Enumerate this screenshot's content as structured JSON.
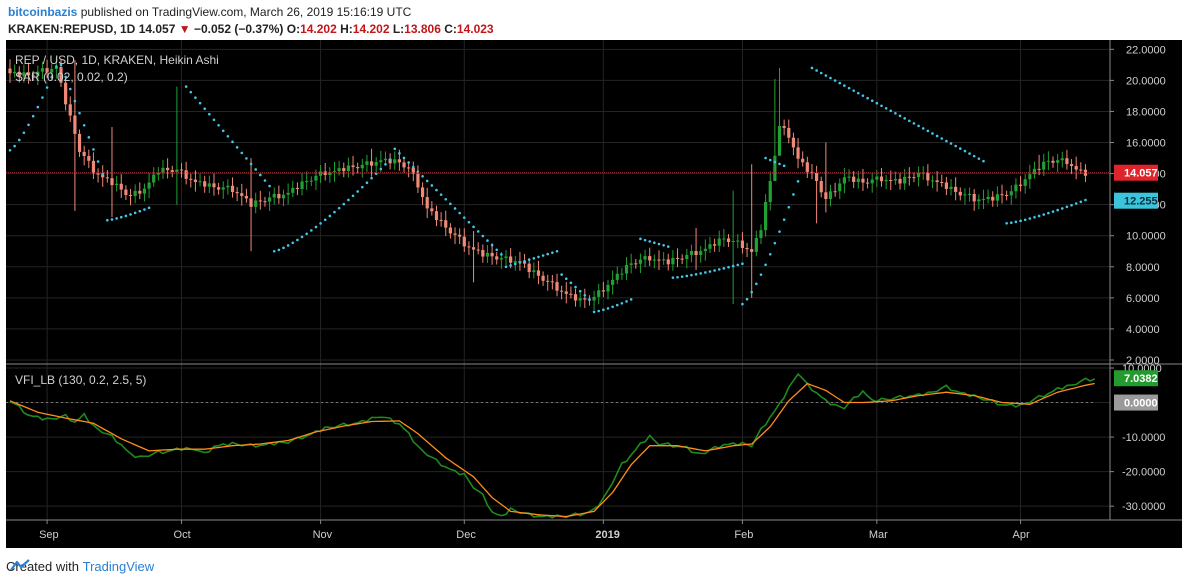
{
  "header": {
    "author": "bitcoinbazis",
    "published_text": "published on TradingView.com, March 26, 2019 15:16:19 UTC",
    "symbol": "KRAKEN:REPUSD, 1D",
    "last": "14.057",
    "change": "−0.052 (−0.37%)",
    "o_label": "O:",
    "o_value": "14.202",
    "h_label": "H:",
    "h_value": "14.202",
    "l_label": "L:",
    "l_value": "13.806",
    "c_label": "C:",
    "c_value": "14.023"
  },
  "footer": {
    "created_with": "Created with",
    "brand": "TradingView"
  },
  "colors": {
    "up": "#22a033",
    "down": "#f08a78",
    "sar": "#40c8e8",
    "vfi": "#1e8a1e",
    "signal": "#ff8c1a",
    "bg": "#000000",
    "grid": "#242424"
  },
  "chart_data": [
    {
      "type": "candlestick",
      "title": "REP / USD, 1D, KRAKEN, Heikin Ashi",
      "indicator_label": "SAR (0.02, 0.02, 0.2)",
      "ylim": [
        2,
        22.6
      ],
      "y_ticks": [
        "22.0000",
        "20.0000",
        "18.0000",
        "16.0000",
        "14.0000",
        "12.0000",
        "10.0000",
        "8.0000",
        "6.0000",
        "4.0000",
        "2.0000"
      ],
      "x_labels": [
        "Sep",
        "Oct",
        "Nov",
        "Dec",
        "2019",
        "Feb",
        "Mar",
        "Apr"
      ],
      "price_badge": "14.057",
      "sar_badge": "12.255",
      "last_price": 14.057,
      "anchors": [
        [
          0,
          20.5
        ],
        [
          4,
          20.3
        ],
        [
          7,
          20.6
        ],
        [
          10,
          20.9
        ],
        [
          12,
          18.6
        ],
        [
          15,
          15.5
        ],
        [
          18,
          14.2
        ],
        [
          22,
          13.4
        ],
        [
          26,
          12.5
        ],
        [
          29,
          13.1
        ],
        [
          32,
          14.2
        ],
        [
          36,
          14.2
        ],
        [
          40,
          13.5
        ],
        [
          44,
          13.1
        ],
        [
          48,
          13.0
        ],
        [
          50,
          12.6
        ],
        [
          52,
          12.0
        ],
        [
          56,
          12.4
        ],
        [
          60,
          12.8
        ],
        [
          64,
          13.5
        ],
        [
          68,
          14.1
        ],
        [
          72,
          14.3
        ],
        [
          76,
          14.5
        ],
        [
          80,
          14.9
        ],
        [
          84,
          14.7
        ],
        [
          86,
          14.3
        ],
        [
          88,
          13.3
        ],
        [
          90,
          11.8
        ],
        [
          94,
          10.5
        ],
        [
          98,
          9.5
        ],
        [
          102,
          8.8
        ],
        [
          106,
          8.5
        ],
        [
          110,
          8.4
        ],
        [
          112,
          7.8
        ],
        [
          116,
          7.0
        ],
        [
          120,
          6.3
        ],
        [
          123,
          5.8
        ],
        [
          126,
          6.0
        ],
        [
          130,
          7.2
        ],
        [
          134,
          8.2
        ],
        [
          138,
          8.6
        ],
        [
          142,
          8.3
        ],
        [
          146,
          8.7
        ],
        [
          150,
          9.2
        ],
        [
          154,
          9.8
        ],
        [
          158,
          9.4
        ],
        [
          160,
          9.0
        ],
        [
          162,
          10.5
        ],
        [
          164,
          13.5
        ],
        [
          166,
          17.0
        ],
        [
          168,
          16.5
        ],
        [
          170,
          15.0
        ],
        [
          174,
          13.5
        ],
        [
          176,
          12.3
        ],
        [
          180,
          13.8
        ],
        [
          184,
          13.4
        ],
        [
          188,
          13.7
        ],
        [
          192,
          13.5
        ],
        [
          196,
          14.0
        ],
        [
          200,
          13.5
        ],
        [
          204,
          12.8
        ],
        [
          208,
          12.4
        ],
        [
          212,
          12.4
        ],
        [
          216,
          12.8
        ],
        [
          220,
          14.0
        ],
        [
          224,
          14.8
        ],
        [
          228,
          14.8
        ],
        [
          230,
          14.3
        ],
        [
          232,
          14.0
        ]
      ],
      "wicks": [
        [
          14,
          21.3,
          11.6
        ],
        [
          22,
          17.0,
          11.2
        ],
        [
          36,
          19.6,
          12.0
        ],
        [
          52,
          15.0,
          9.0
        ],
        [
          78,
          15.6,
          13.8
        ],
        [
          100,
          10.3,
          7.0
        ],
        [
          148,
          10.5,
          7.8
        ],
        [
          156,
          12.9,
          5.6
        ],
        [
          160,
          14.6,
          6.0
        ],
        [
          165,
          20.1,
          14.0
        ],
        [
          166,
          20.8,
          16.4
        ],
        [
          174,
          14.5,
          10.8
        ],
        [
          176,
          16.0,
          11.5
        ],
        [
          208,
          13.0,
          11.6
        ],
        [
          222,
          15.2,
          13.9
        ]
      ],
      "sar_segments": [
        [
          0,
          10,
          15.5,
          20.9,
          "below"
        ],
        [
          11,
          20,
          21.0,
          14.0,
          "above"
        ],
        [
          21,
          30,
          11.0,
          11.8,
          "below"
        ],
        [
          38,
          56,
          19.6,
          13.2,
          "above"
        ],
        [
          57,
          82,
          9.0,
          14.9,
          "below"
        ],
        [
          83,
          106,
          15.6,
          8.8,
          "above"
        ],
        [
          107,
          118,
          8.0,
          9.0,
          "above"
        ],
        [
          119,
          125,
          7.5,
          5.9,
          "above"
        ],
        [
          126,
          134,
          5.1,
          5.9,
          "below"
        ],
        [
          136,
          142,
          9.8,
          9.3,
          "above"
        ],
        [
          143,
          158,
          7.3,
          8.2,
          "below"
        ],
        [
          163,
          167,
          15.0,
          14.5,
          "above"
        ],
        [
          158,
          170,
          5.6,
          13.5,
          "below"
        ],
        [
          173,
          210,
          20.8,
          14.8,
          "above"
        ],
        [
          215,
          232,
          10.8,
          12.3,
          "below"
        ]
      ]
    },
    {
      "type": "line",
      "title": "VFI_LB (130, 0.2, 2.5, 5)",
      "ylim": [
        -34,
        10
      ],
      "y_ticks": [
        "10.0000",
        "-10.0000",
        "-20.0000",
        "-30.0000"
      ],
      "vfi_badge": "7.0382",
      "zero_badge": "0.0000",
      "series": [
        {
          "name": "VFI",
          "anchors": [
            [
              0,
              0.5
            ],
            [
              4,
              -3.5
            ],
            [
              8,
              -5.0
            ],
            [
              12,
              -4.0
            ],
            [
              14,
              -5.5
            ],
            [
              16,
              -3.5
            ],
            [
              18,
              -7.0
            ],
            [
              22,
              -10.0
            ],
            [
              24,
              -12.0
            ],
            [
              26,
              -15.0
            ],
            [
              28,
              -16.0
            ],
            [
              32,
              -14.5
            ],
            [
              36,
              -13.5
            ],
            [
              40,
              -13.5
            ],
            [
              42,
              -15.0
            ],
            [
              44,
              -12.5
            ],
            [
              48,
              -12.0
            ],
            [
              52,
              -12.5
            ],
            [
              56,
              -12.0
            ],
            [
              60,
              -11.5
            ],
            [
              64,
              -9.5
            ],
            [
              68,
              -7.5
            ],
            [
              72,
              -6.5
            ],
            [
              76,
              -5.5
            ],
            [
              80,
              -4.0
            ],
            [
              84,
              -6.0
            ],
            [
              86,
              -9.0
            ],
            [
              88,
              -13.0
            ],
            [
              92,
              -17.0
            ],
            [
              96,
              -20.0
            ],
            [
              98,
              -21.0
            ],
            [
              100,
              -24.5
            ],
            [
              102,
              -27.0
            ],
            [
              104,
              -31.5
            ],
            [
              106,
              -33.0
            ],
            [
              108,
              -31.0
            ],
            [
              112,
              -32.5
            ],
            [
              116,
              -33.0
            ],
            [
              120,
              -33.0
            ],
            [
              124,
              -32.0
            ],
            [
              126,
              -31.0
            ],
            [
              128,
              -28.0
            ],
            [
              130,
              -23.0
            ],
            [
              132,
              -18.0
            ],
            [
              134,
              -15.0
            ],
            [
              136,
              -12.0
            ],
            [
              138,
              -10.0
            ],
            [
              140,
              -12.0
            ],
            [
              144,
              -12.5
            ],
            [
              146,
              -13.0
            ],
            [
              148,
              -15.0
            ],
            [
              150,
              -14.5
            ],
            [
              154,
              -12.0
            ],
            [
              158,
              -12.0
            ],
            [
              160,
              -12.5
            ],
            [
              162,
              -8.0
            ],
            [
              164,
              -4.0
            ],
            [
              166,
              -0.5
            ],
            [
              168,
              4.0
            ],
            [
              170,
              8.5
            ],
            [
              172,
              5.0
            ],
            [
              174,
              3.0
            ],
            [
              176,
              0.5
            ],
            [
              178,
              -1.0
            ],
            [
              180,
              -1.5
            ],
            [
              182,
              1.0
            ],
            [
              184,
              3.5
            ],
            [
              186,
              0.5
            ],
            [
              190,
              1.0
            ],
            [
              194,
              2.0
            ],
            [
              198,
              2.5
            ],
            [
              202,
              4.5
            ],
            [
              206,
              2.5
            ],
            [
              210,
              1.0
            ],
            [
              214,
              -0.5
            ],
            [
              218,
              -1.0
            ],
            [
              222,
              1.5
            ],
            [
              226,
              4.0
            ],
            [
              228,
              4.5
            ],
            [
              232,
              6.5
            ],
            [
              234,
              7.0
            ]
          ]
        },
        {
          "name": "Signal",
          "anchors": [
            [
              0,
              0.5
            ],
            [
              6,
              -2.8
            ],
            [
              12,
              -4.5
            ],
            [
              18,
              -6.0
            ],
            [
              24,
              -10.5
            ],
            [
              30,
              -14.0
            ],
            [
              36,
              -13.5
            ],
            [
              42,
              -13.5
            ],
            [
              48,
              -12.5
            ],
            [
              54,
              -12.0
            ],
            [
              60,
              -11.0
            ],
            [
              66,
              -8.5
            ],
            [
              72,
              -6.8
            ],
            [
              78,
              -5.5
            ],
            [
              84,
              -5.3
            ],
            [
              88,
              -9.0
            ],
            [
              94,
              -16.0
            ],
            [
              100,
              -21.5
            ],
            [
              104,
              -27.5
            ],
            [
              108,
              -31.5
            ],
            [
              114,
              -32.5
            ],
            [
              120,
              -33.0
            ],
            [
              126,
              -31.5
            ],
            [
              130,
              -26.0
            ],
            [
              134,
              -18.0
            ],
            [
              138,
              -12.5
            ],
            [
              144,
              -12.5
            ],
            [
              150,
              -14.0
            ],
            [
              156,
              -12.5
            ],
            [
              160,
              -12.0
            ],
            [
              164,
              -7.0
            ],
            [
              168,
              0.5
            ],
            [
              172,
              5.5
            ],
            [
              176,
              3.5
            ],
            [
              180,
              0.0
            ],
            [
              184,
              0.0
            ],
            [
              190,
              0.5
            ],
            [
              196,
              2.0
            ],
            [
              202,
              3.0
            ],
            [
              208,
              2.0
            ],
            [
              214,
              0.0
            ],
            [
              220,
              -0.5
            ],
            [
              226,
              3.0
            ],
            [
              232,
              5.0
            ],
            [
              234,
              5.5
            ]
          ]
        }
      ]
    }
  ]
}
